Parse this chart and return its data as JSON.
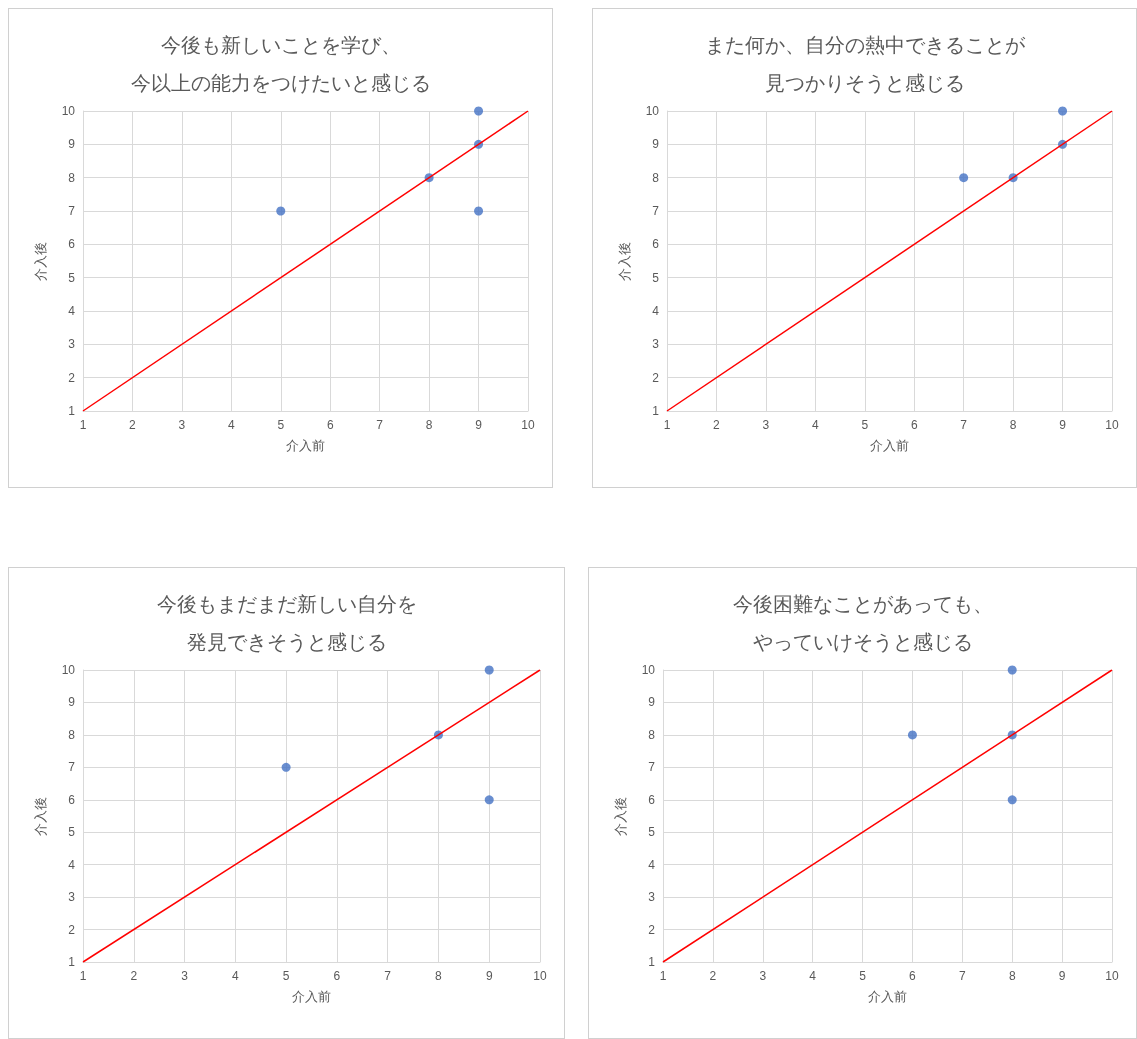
{
  "chart_data": [
    {
      "type": "scatter",
      "title": "今後も新しいことを学び、今以上の能力をつけたいと感じる",
      "xlabel": "介入前",
      "ylabel": "介入後",
      "xlim": [
        1,
        10
      ],
      "ylim": [
        1,
        10
      ],
      "xticks": [
        1,
        2,
        3,
        4,
        5,
        6,
        7,
        8,
        9,
        10
      ],
      "yticks": [
        1,
        2,
        3,
        4,
        5,
        6,
        7,
        8,
        9,
        10
      ],
      "grid": true,
      "series": [
        {
          "color": "#4472c4",
          "marker": "circle",
          "x": [
            5,
            8,
            9,
            9,
            9
          ],
          "values": [
            7,
            8,
            9,
            10,
            7
          ]
        },
        {
          "type": "line",
          "color": "#ff0000",
          "marker": "none",
          "line_style": "solid",
          "x": [
            1,
            10
          ],
          "values": [
            1,
            10
          ]
        }
      ]
    },
    {
      "type": "scatter",
      "title": "また何か、自分の熱中できることが見つかりそうと感じる",
      "xlabel": "介入前",
      "ylabel": "介入後",
      "xlim": [
        1,
        10
      ],
      "ylim": [
        1,
        10
      ],
      "xticks": [
        1,
        2,
        3,
        4,
        5,
        6,
        7,
        8,
        9,
        10
      ],
      "yticks": [
        1,
        2,
        3,
        4,
        5,
        6,
        7,
        8,
        9,
        10
      ],
      "grid": true,
      "series": [
        {
          "color": "#4472c4",
          "marker": "circle",
          "x": [
            7,
            8,
            9,
            9
          ],
          "values": [
            8,
            8,
            9,
            10
          ]
        },
        {
          "type": "line",
          "color": "#ff0000",
          "marker": "none",
          "line_style": "solid",
          "x": [
            1,
            10
          ],
          "values": [
            1,
            10
          ]
        }
      ]
    },
    {
      "type": "scatter",
      "title": "今後もまだまだ新しい自分を発見できそうと感じる",
      "xlabel": "介入前",
      "ylabel": "介入後",
      "xlim": [
        1,
        10
      ],
      "ylim": [
        1,
        10
      ],
      "xticks": [
        1,
        2,
        3,
        4,
        5,
        6,
        7,
        8,
        9,
        10
      ],
      "yticks": [
        1,
        2,
        3,
        4,
        5,
        6,
        7,
        8,
        9,
        10
      ],
      "grid": true,
      "series": [
        {
          "color": "#4472c4",
          "marker": "circle",
          "x": [
            5,
            8,
            9,
            9
          ],
          "values": [
            7,
            8,
            10,
            6
          ]
        },
        {
          "type": "line",
          "color": "#ff0000",
          "marker": "none",
          "line_style": "solid",
          "x": [
            1,
            10
          ],
          "values": [
            1,
            10
          ]
        }
      ]
    },
    {
      "type": "scatter",
      "title": "今後困難なことがあっても、やっていけそうと感じる",
      "xlabel": "介入前",
      "ylabel": "介入後",
      "xlim": [
        1,
        10
      ],
      "ylim": [
        1,
        10
      ],
      "xticks": [
        1,
        2,
        3,
        4,
        5,
        6,
        7,
        8,
        9,
        10
      ],
      "yticks": [
        1,
        2,
        3,
        4,
        5,
        6,
        7,
        8,
        9,
        10
      ],
      "grid": true,
      "series": [
        {
          "color": "#4472c4",
          "marker": "circle",
          "x": [
            6,
            8,
            8,
            8
          ],
          "values": [
            8,
            8,
            10,
            6
          ]
        },
        {
          "type": "line",
          "color": "#ff0000",
          "marker": "none",
          "line_style": "solid",
          "x": [
            1,
            10
          ],
          "values": [
            1,
            10
          ]
        }
      ]
    }
  ]
}
